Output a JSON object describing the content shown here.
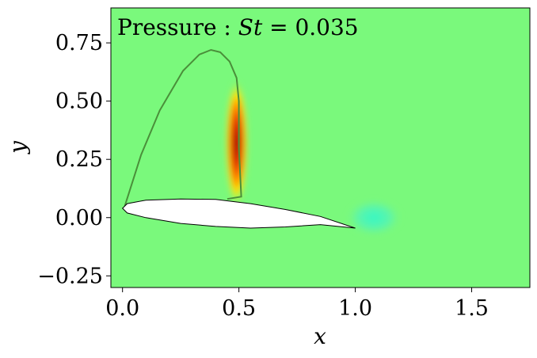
{
  "chart_data": {
    "type": "heatmap",
    "title": "Pressure : St = 0.035",
    "title_parts": {
      "prefix": "Pressure : ",
      "var": "St",
      "suffix": " = 0.035"
    },
    "xlabel": "x",
    "ylabel": "y",
    "xlim": [
      -0.05,
      1.75
    ],
    "ylim": [
      -0.3,
      0.9
    ],
    "x_ticks": [
      {
        "value": 0.0,
        "label": "0.0"
      },
      {
        "value": 0.5,
        "label": "0.5"
      },
      {
        "value": 1.0,
        "label": "1.0"
      },
      {
        "value": 1.5,
        "label": "1.5"
      }
    ],
    "y_ticks": [
      {
        "value": -0.25,
        "label": "−0.25"
      },
      {
        "value": 0.0,
        "label": "0.00"
      },
      {
        "value": 0.25,
        "label": "0.25"
      },
      {
        "value": 0.5,
        "label": "0.50"
      },
      {
        "value": 0.75,
        "label": "0.75"
      }
    ],
    "grid": false,
    "colormap": "jet",
    "background_color": "#7af97c",
    "airfoil": {
      "upper": [
        [
          0.0,
          0.04
        ],
        [
          0.02,
          0.06
        ],
        [
          0.1,
          0.075
        ],
        [
          0.25,
          0.08
        ],
        [
          0.4,
          0.078
        ],
        [
          0.55,
          0.06
        ],
        [
          0.7,
          0.035
        ],
        [
          0.85,
          0.005
        ],
        [
          1.0,
          -0.045
        ]
      ],
      "lower": [
        [
          0.0,
          0.04
        ],
        [
          0.02,
          0.02
        ],
        [
          0.1,
          0.0
        ],
        [
          0.25,
          -0.025
        ],
        [
          0.4,
          -0.038
        ],
        [
          0.55,
          -0.045
        ],
        [
          0.7,
          -0.04
        ],
        [
          0.85,
          -0.03
        ],
        [
          1.0,
          -0.045
        ]
      ]
    },
    "vortex_outline": [
      [
        0.01,
        0.05
      ],
      [
        0.08,
        0.27
      ],
      [
        0.16,
        0.46
      ],
      [
        0.26,
        0.63
      ],
      [
        0.33,
        0.7
      ],
      [
        0.38,
        0.72
      ],
      [
        0.42,
        0.71
      ],
      [
        0.46,
        0.67
      ],
      [
        0.49,
        0.6
      ],
      [
        0.5,
        0.5
      ],
      [
        0.5,
        0.3
      ],
      [
        0.51,
        0.09
      ],
      [
        0.45,
        0.08
      ]
    ],
    "features": [
      {
        "kind": "high-pressure",
        "cx": 0.49,
        "cy": 0.32,
        "rx": 0.05,
        "ry": 0.28,
        "peak": "#8b0000"
      },
      {
        "kind": "low-pressure",
        "cx": 1.08,
        "cy": 0.0,
        "rx": 0.12,
        "ry": 0.08,
        "peak": "#35f6c5"
      }
    ]
  }
}
